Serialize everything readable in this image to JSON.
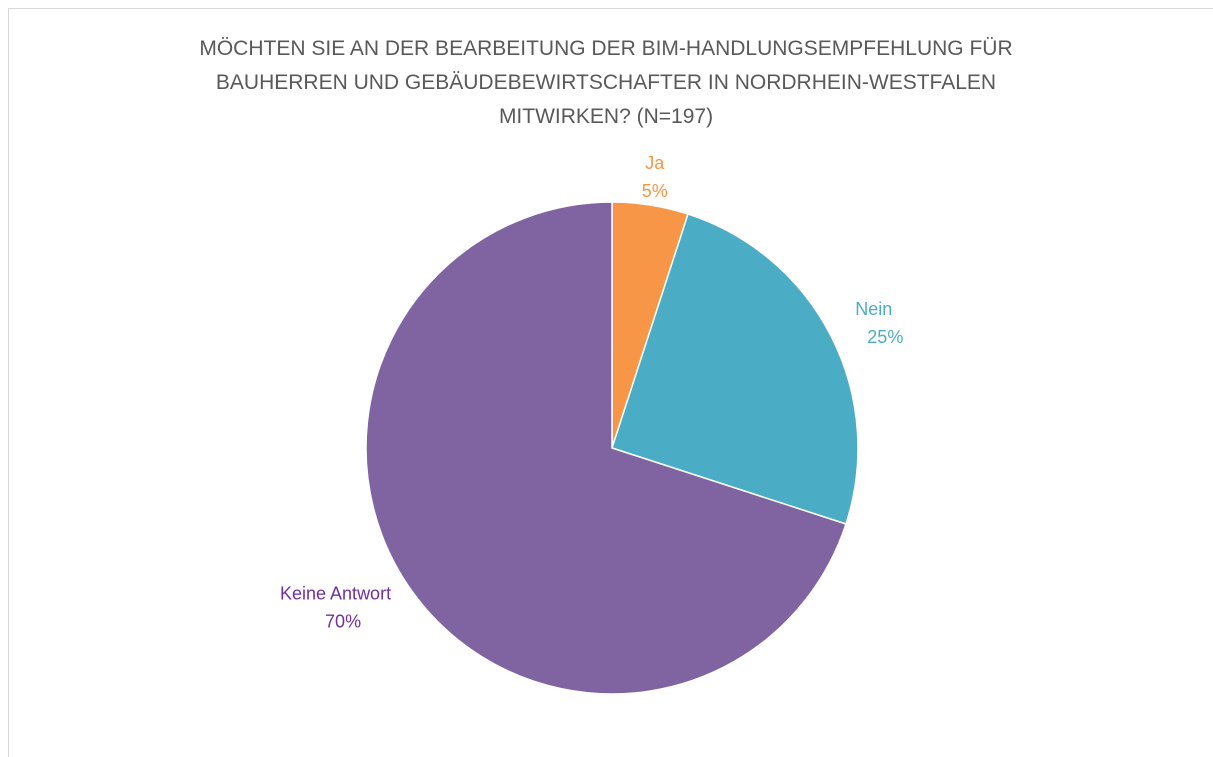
{
  "chart_data": {
    "type": "pie",
    "title": "MÖCHTEN SIE AN DER BEARBEITUNG DER BIM-HANDLUNGSEMPFEHLUNG FÜR BAUHERREN UND GEBÄUDEBEWIRTSCHAFTER IN NORDRHEIN-WESTFALEN MITWIRKEN? (N=197)",
    "categories": [
      "Ja",
      "Nein",
      "Keine Antwort"
    ],
    "values": [
      5,
      25,
      70
    ],
    "value_labels": [
      "5%",
      "25%",
      "70%"
    ],
    "colors": [
      "#f79646",
      "#4bacc6",
      "#8064a2"
    ],
    "label_colors": [
      "#f79646",
      "#4bacc6",
      "#7030a0"
    ]
  }
}
